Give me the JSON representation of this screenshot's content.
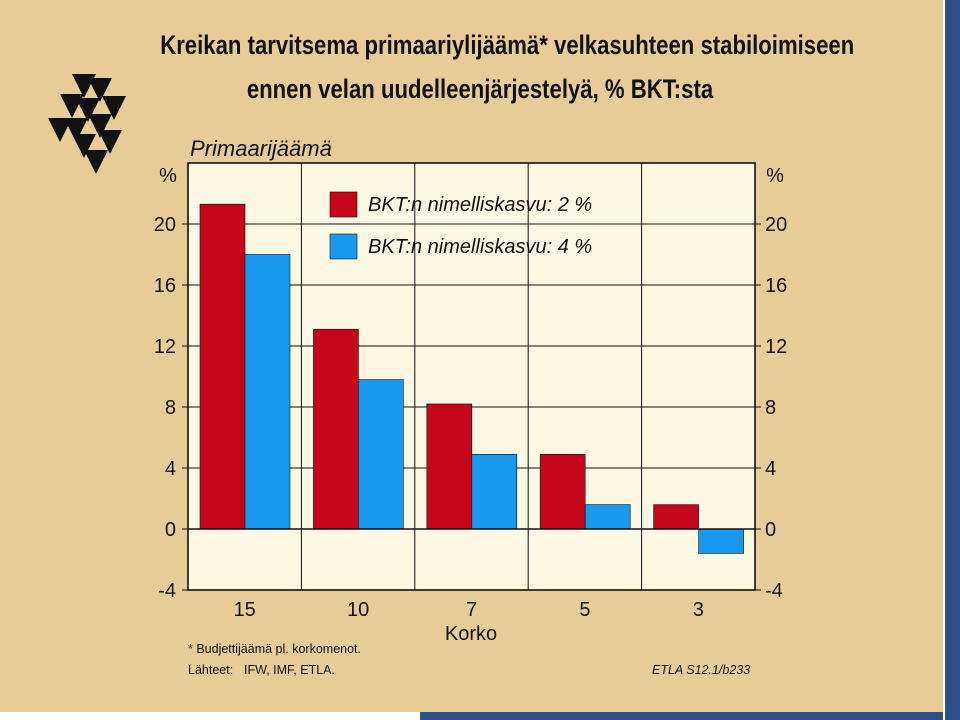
{
  "title_line1": "Kreikan tarvitsema primaariylijäämä* velkasuhteen stabiloimiseen",
  "title_line2": "ennen velan uudelleenjärjestelyä, % BKT:sta",
  "footnote": "* Budjettijäämä pl. korkomenot.",
  "sources_label": "Lähteet:",
  "sources_value": "IFW, IMF, ETLA.",
  "chart_code": "ETLA S12.1/b233",
  "colors": {
    "background": "#e8cc98",
    "plot_background": "#fdf8e4",
    "series1": "#c4071a",
    "series2": "#1899f0",
    "frame": "#2f4f8a"
  },
  "logo_icon": "etla-triangles-logo-icon",
  "chart_data": {
    "type": "bar",
    "plot_title": "Primaarijäämä",
    "y_unit_left": "%",
    "y_unit_right": "%",
    "xlabel": "Korko",
    "categories": [
      "15",
      "10",
      "7",
      "5",
      "3"
    ],
    "series": [
      {
        "name": "BKT:n nimelliskasvu: 2 %",
        "values": [
          21.3,
          13.1,
          8.2,
          4.9,
          1.6
        ]
      },
      {
        "name": "BKT:n nimelliskasvu: 4 %",
        "values": [
          18.0,
          9.8,
          4.9,
          1.6,
          -1.6
        ]
      }
    ],
    "ylim": [
      -4,
      24
    ],
    "yticks": [
      -4,
      0,
      4,
      8,
      12,
      16,
      20
    ],
    "grid": true,
    "legend_position": "top-center"
  }
}
